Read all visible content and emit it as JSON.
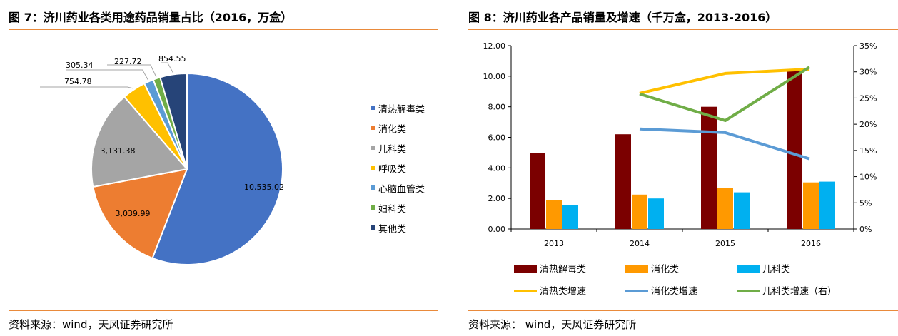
{
  "left": {
    "title": "图 7：济川药业各类用途药品销量占比（2016，万盒）",
    "source": "资料来源：wind，天风证券研究所"
  },
  "right": {
    "title": "图 8：济川药业各产品销量及增速（千万盒，2013-2016）",
    "source": "资料来源：  wind，天风证券研究所"
  },
  "chart_data": [
    {
      "type": "pie",
      "title": "",
      "categories": [
        "清热解毒类",
        "消化类",
        "儿科类",
        "呼吸类",
        "心脑血管类",
        "妇科类",
        "其他类"
      ],
      "values": [
        10535.02,
        3039.99,
        3131.38,
        754.78,
        305.34,
        227.72,
        854.55
      ],
      "value_labels": [
        "10,535.02",
        "3,039.99",
        "3,131.38",
        "754.78",
        "305.34",
        "227.72",
        "854.55"
      ],
      "colors": [
        "#4472C4",
        "#ED7D31",
        "#A5A5A5",
        "#FFC000",
        "#5B9BD5",
        "#70AD47",
        "#264478"
      ],
      "start_angle_deg": 0,
      "direction": "clockwise",
      "legend_position": "right"
    },
    {
      "type": "bar",
      "title": "",
      "categories": [
        "2013",
        "2014",
        "2015",
        "2016"
      ],
      "y_left": {
        "min": 0,
        "max": 12,
        "step": 2,
        "ticks": [
          "0.00",
          "2.00",
          "4.00",
          "6.00",
          "8.00",
          "10.00",
          "12.00"
        ]
      },
      "y_right": {
        "min": 0,
        "max": 0.35,
        "step": 0.05,
        "ticks": [
          "0%",
          "5%",
          "10%",
          "15%",
          "20%",
          "25%",
          "30%",
          "35%"
        ]
      },
      "series": [
        {
          "name": "清热解毒类",
          "kind": "bar",
          "axis": "left",
          "color": "#7B0000",
          "values": [
            4.95,
            6.2,
            8.0,
            10.45
          ]
        },
        {
          "name": "消化类",
          "kind": "bar",
          "axis": "left",
          "color": "#FF9900",
          "values": [
            1.9,
            2.25,
            2.7,
            3.05
          ]
        },
        {
          "name": "儿科类",
          "kind": "bar",
          "axis": "left",
          "color": "#00B0F0",
          "values": [
            1.55,
            2.0,
            2.4,
            3.1
          ]
        },
        {
          "name": "清热类增速",
          "kind": "line",
          "axis": "right",
          "color": "#FFC000",
          "values": [
            null,
            0.259,
            0.297,
            0.305
          ]
        },
        {
          "name": "消化类增速",
          "kind": "line",
          "axis": "right",
          "color": "#5B9BD5",
          "values": [
            null,
            0.191,
            0.184,
            0.134
          ]
        },
        {
          "name": "儿科类增速（右）",
          "kind": "line",
          "axis": "right",
          "color": "#70AD47",
          "values": [
            null,
            0.258,
            0.207,
            0.309
          ]
        }
      ],
      "legend_position": "bottom",
      "grid": false
    }
  ]
}
